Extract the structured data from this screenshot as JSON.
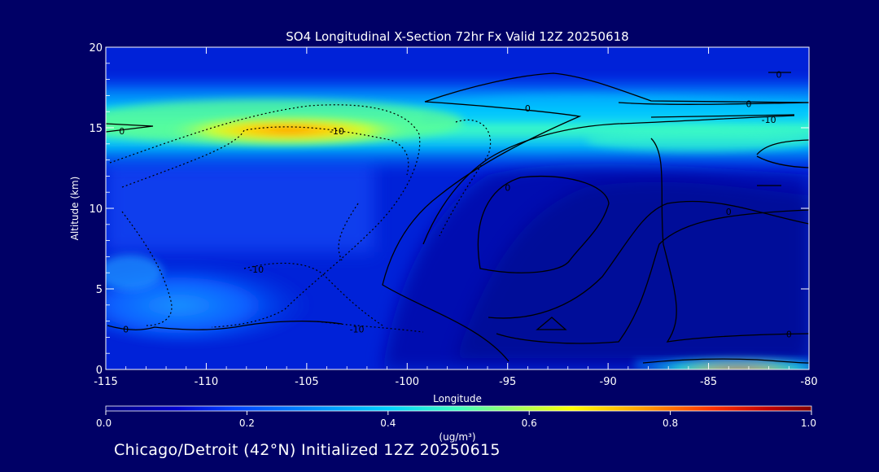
{
  "colors": {
    "background": "#000066",
    "text": "#ffffff",
    "contour": "#000000"
  },
  "chart_data": {
    "type": "heatmap",
    "title": "SO4 Longitudinal X-Section 72hr  Fx Valid 12Z 20250618",
    "xlabel": "Longitude",
    "ylabel": "Altitude (km)",
    "xlim": [
      -115,
      -80
    ],
    "ylim": [
      0,
      20
    ],
    "x_ticks": [
      "-115",
      "-110",
      "-105",
      "-100",
      "-95",
      "-90",
      "-85",
      "-80"
    ],
    "x_tick_values": [
      -115,
      -110,
      -105,
      -100,
      -95,
      -90,
      -85,
      -80
    ],
    "y_ticks": [
      "0",
      "5",
      "10",
      "15",
      "20"
    ],
    "y_tick_values": [
      0,
      5,
      10,
      15,
      20
    ],
    "colorbar": {
      "label": "(ug/m³)",
      "min": 0.0,
      "max": 1.0,
      "ticks": [
        "0.0",
        "0.2",
        "0.4",
        "0.6",
        "0.8",
        "1.0"
      ],
      "tick_values": [
        0.0,
        0.2,
        0.4,
        0.6,
        0.8,
        1.0
      ],
      "colors": [
        "#000080",
        "#0000cd",
        "#0040ff",
        "#0090ff",
        "#00d0ff",
        "#40ffc0",
        "#a0ff60",
        "#ffff00",
        "#ffa000",
        "#ff3000",
        "#c00000",
        "#800000"
      ]
    },
    "contour_labels": [
      {
        "text": "0",
        "x": -114.2,
        "y": 14.8
      },
      {
        "text": "-10",
        "x": -103.5,
        "y": 14.8
      },
      {
        "text": "0",
        "x": -94.0,
        "y": 16.2
      },
      {
        "text": "0",
        "x": -83.0,
        "y": 16.5
      },
      {
        "text": "-10",
        "x": -82.0,
        "y": 15.5
      },
      {
        "text": "0",
        "x": -81.5,
        "y": 18.3
      },
      {
        "text": "0",
        "x": -95.0,
        "y": 11.3
      },
      {
        "text": "0",
        "x": -84.0,
        "y": 9.8
      },
      {
        "text": "-10",
        "x": -107.5,
        "y": 6.2
      },
      {
        "text": "-10",
        "x": -102.5,
        "y": 2.5
      },
      {
        "text": "0",
        "x": -114.0,
        "y": 2.5
      },
      {
        "text": "0",
        "x": -81.0,
        "y": 2.2
      }
    ],
    "concentration_features": [
      {
        "name": "upper plume",
        "lon_range": [
          -115,
          -80
        ],
        "alt_km": 14.8,
        "peak": 0.65,
        "peak_lon": -106
      },
      {
        "name": "low-level west",
        "lon_range": [
          -115,
          -104
        ],
        "alt_km": 4.0,
        "peak": 0.35
      },
      {
        "name": "surface east",
        "lon_range": [
          -88,
          -80
        ],
        "alt_km": 0.2,
        "peak": 0.85
      }
    ],
    "grid": false
  },
  "footer": {
    "subtitle": "Chicago/Detroit (42°N) Initialized 12Z 20250615"
  }
}
